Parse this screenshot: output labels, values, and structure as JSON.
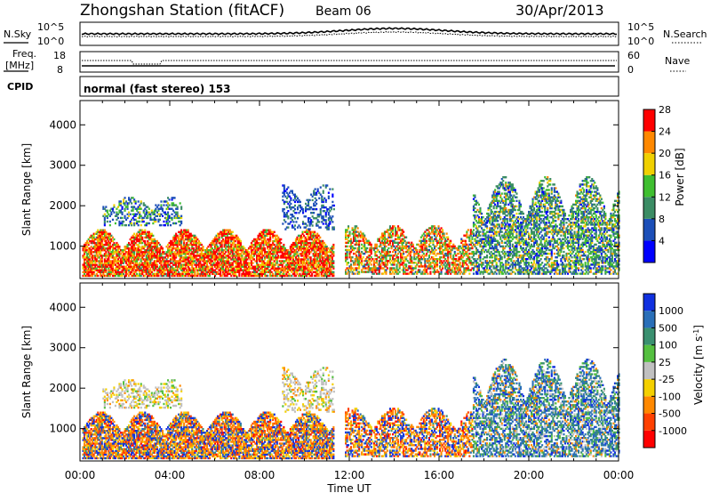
{
  "header": {
    "station": "Zhongshan Station (fitACF)",
    "beam": "Beam 06",
    "date": "30/Apr/2013"
  },
  "top_panels": {
    "nsky_label": "N.Sky",
    "nsky_ticks": [
      "10^5",
      "10^0"
    ],
    "nsearch_label": "N.Search",
    "nsearch_ticks": [
      "10^5",
      "10^0"
    ],
    "freq_label": "Freq.",
    "freq_unit": "[MHz]",
    "freq_ticks": [
      "18",
      "8"
    ],
    "nave_label": "Nave",
    "nave_ticks": [
      "60",
      "0"
    ],
    "cpid_label": "CPID",
    "cpid_text": "normal (fast stereo) 153"
  },
  "chart_data": [
    {
      "type": "heatmap",
      "name": "power-panel",
      "ylabel": "Slant Range [km]",
      "yticks": [
        "1000",
        "2000",
        "3000",
        "4000"
      ],
      "ylim": [
        200,
        4600
      ],
      "xlabel": "",
      "xticks": [
        "00:00",
        "04:00",
        "08:00",
        "12:00",
        "16:00",
        "20:00",
        "00:00"
      ],
      "xlim_hours": [
        0,
        24
      ],
      "colorbar": {
        "label": "Power [dB]",
        "ticks": [
          "4",
          "8",
          "12",
          "16",
          "20",
          "24",
          "28"
        ],
        "range": [
          0,
          32
        ],
        "colors": [
          "#0000ff",
          "#1c4fb8",
          "#3b8c64",
          "#3fbf30",
          "#f0d000",
          "#ff8800",
          "#ff0000"
        ]
      },
      "echo_regions": [
        {
          "t0": 0.1,
          "t1": 11.3,
          "r0": 250,
          "r1": 1400,
          "dominant": "red-orange"
        },
        {
          "t0": 1.0,
          "t1": 4.5,
          "r0": 1500,
          "r1": 2200,
          "dominant": "blue-green"
        },
        {
          "t0": 9.0,
          "t1": 11.3,
          "r0": 1400,
          "r1": 2500,
          "dominant": "blue"
        },
        {
          "t0": 11.8,
          "t1": 17.5,
          "r0": 300,
          "r1": 1500,
          "dominant": "orange-green"
        },
        {
          "t0": 17.5,
          "t1": 24.0,
          "r0": 300,
          "r1": 2700,
          "dominant": "green-blue"
        }
      ]
    },
    {
      "type": "heatmap",
      "name": "velocity-panel",
      "ylabel": "Slant Range [km]",
      "yticks": [
        "1000",
        "2000",
        "3000",
        "4000"
      ],
      "ylim": [
        200,
        4600
      ],
      "xlabel": "Time UT",
      "xticks": [
        "00:00",
        "04:00",
        "08:00",
        "12:00",
        "16:00",
        "20:00",
        "00:00"
      ],
      "xlim_hours": [
        0,
        24
      ],
      "colorbar": {
        "label": "Velocity [m s",
        "label_sup": "-1",
        "label_close": "]",
        "ticks": [
          "1000",
          "500",
          "100",
          "25",
          "-25",
          "-100",
          "-500",
          "-1000"
        ],
        "colors": [
          "#1030e0",
          "#2a6fb8",
          "#3a9070",
          "#55c040",
          "#c0c0c0",
          "#f4d000",
          "#ff8800",
          "#ff4000",
          "#ff0000"
        ]
      },
      "echo_regions": [
        {
          "t0": 0.1,
          "t1": 11.3,
          "r0": 250,
          "r1": 1400,
          "dominant": "orange-blue"
        },
        {
          "t0": 1.0,
          "t1": 4.5,
          "r0": 1500,
          "r1": 2200,
          "dominant": "grey"
        },
        {
          "t0": 9.0,
          "t1": 11.3,
          "r0": 1400,
          "r1": 2500,
          "dominant": "grey"
        },
        {
          "t0": 11.8,
          "t1": 17.5,
          "r0": 300,
          "r1": 1500,
          "dominant": "orange-blue"
        },
        {
          "t0": 17.5,
          "t1": 24.0,
          "r0": 300,
          "r1": 2700,
          "dominant": "blue-green"
        }
      ]
    }
  ]
}
